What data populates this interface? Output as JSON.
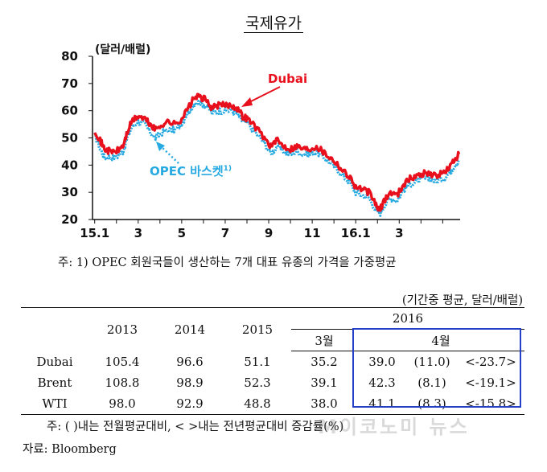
{
  "title": "국제유가",
  "chart_data": {
    "type": "line",
    "ylabel": "(달러/배럴)",
    "ylim": [
      20,
      80
    ],
    "yticks": [
      20,
      30,
      40,
      50,
      60,
      70,
      80
    ],
    "xticks": [
      {
        "label": "15.1",
        "month": 0
      },
      {
        "label": "3",
        "month": 2
      },
      {
        "label": "5",
        "month": 4
      },
      {
        "label": "7",
        "month": 6
      },
      {
        "label": "9",
        "month": 8
      },
      {
        "label": "11",
        "month": 10
      },
      {
        "label": "16.1",
        "month": 12
      },
      {
        "label": "3",
        "month": 14
      }
    ],
    "x_start_month": -0.1,
    "x_end_month": 16.8,
    "grid": false,
    "series": [
      {
        "name": "Dubai",
        "color": "#e8101c",
        "points": [
          [
            0.0,
            53
          ],
          [
            0.25,
            49
          ],
          [
            0.45,
            46
          ],
          [
            0.7,
            45
          ],
          [
            1.0,
            45
          ],
          [
            1.3,
            47
          ],
          [
            1.5,
            52
          ],
          [
            1.7,
            56
          ],
          [
            2.0,
            58
          ],
          [
            2.3,
            57
          ],
          [
            2.55,
            55
          ],
          [
            2.8,
            53
          ],
          [
            3.1,
            55
          ],
          [
            3.4,
            56
          ],
          [
            3.7,
            55
          ],
          [
            4.0,
            57
          ],
          [
            4.3,
            61
          ],
          [
            4.6,
            65
          ],
          [
            4.85,
            65
          ],
          [
            5.1,
            64
          ],
          [
            5.4,
            61
          ],
          [
            5.7,
            62
          ],
          [
            6.0,
            62
          ],
          [
            6.3,
            62
          ],
          [
            6.55,
            61
          ],
          [
            6.8,
            58
          ],
          [
            7.05,
            57
          ],
          [
            7.4,
            54
          ],
          [
            7.8,
            50
          ],
          [
            8.1,
            47
          ],
          [
            8.4,
            49
          ],
          [
            8.7,
            47
          ],
          [
            9.0,
            46
          ],
          [
            9.3,
            47
          ],
          [
            9.6,
            46
          ],
          [
            9.9,
            46
          ],
          [
            10.2,
            47
          ],
          [
            10.5,
            45
          ],
          [
            10.8,
            43
          ],
          [
            11.1,
            41
          ],
          [
            11.4,
            38
          ],
          [
            11.7,
            36
          ],
          [
            12.0,
            32
          ],
          [
            12.3,
            31
          ],
          [
            12.6,
            30
          ],
          [
            12.9,
            26
          ],
          [
            13.1,
            23
          ],
          [
            13.3,
            27
          ],
          [
            13.6,
            30
          ],
          [
            13.9,
            29
          ],
          [
            14.2,
            33
          ],
          [
            14.5,
            35
          ],
          [
            14.8,
            36
          ],
          [
            15.1,
            37
          ],
          [
            15.4,
            37
          ],
          [
            15.7,
            36
          ],
          [
            16.0,
            37
          ],
          [
            16.3,
            39
          ],
          [
            16.55,
            42
          ],
          [
            16.75,
            44
          ]
        ]
      },
      {
        "name": "OPEC 바스켓",
        "color": "#27a9e1",
        "points": [
          [
            0.0,
            51
          ],
          [
            0.25,
            46
          ],
          [
            0.45,
            43
          ],
          [
            0.7,
            43
          ],
          [
            1.0,
            43
          ],
          [
            1.3,
            45
          ],
          [
            1.5,
            50
          ],
          [
            1.7,
            54
          ],
          [
            2.0,
            56
          ],
          [
            2.3,
            55
          ],
          [
            2.55,
            52
          ],
          [
            2.8,
            50
          ],
          [
            3.1,
            52
          ],
          [
            3.4,
            53
          ],
          [
            3.7,
            53
          ],
          [
            4.0,
            55
          ],
          [
            4.3,
            59
          ],
          [
            4.6,
            63
          ],
          [
            4.85,
            63
          ],
          [
            5.1,
            62
          ],
          [
            5.4,
            59
          ],
          [
            5.7,
            60
          ],
          [
            6.0,
            60
          ],
          [
            6.3,
            60
          ],
          [
            6.55,
            59
          ],
          [
            6.8,
            56
          ],
          [
            7.05,
            55
          ],
          [
            7.4,
            52
          ],
          [
            7.8,
            48
          ],
          [
            8.1,
            44
          ],
          [
            8.4,
            47
          ],
          [
            8.7,
            45
          ],
          [
            9.0,
            44
          ],
          [
            9.3,
            45
          ],
          [
            9.6,
            44
          ],
          [
            9.9,
            44
          ],
          [
            10.2,
            45
          ],
          [
            10.5,
            43
          ],
          [
            10.8,
            41
          ],
          [
            11.1,
            39
          ],
          [
            11.4,
            36
          ],
          [
            11.7,
            34
          ],
          [
            12.0,
            30
          ],
          [
            12.3,
            29
          ],
          [
            12.6,
            28
          ],
          [
            12.9,
            24
          ],
          [
            13.1,
            22
          ],
          [
            13.3,
            25
          ],
          [
            13.6,
            28
          ],
          [
            13.9,
            27
          ],
          [
            14.2,
            31
          ],
          [
            14.5,
            33
          ],
          [
            14.8,
            34
          ],
          [
            15.1,
            35
          ],
          [
            15.4,
            35
          ],
          [
            15.7,
            34
          ],
          [
            16.0,
            35
          ],
          [
            16.3,
            37
          ],
          [
            16.55,
            40
          ],
          [
            16.75,
            42
          ]
        ]
      }
    ],
    "annotations": {
      "dubai_label": "Dubai",
      "opec_label": "OPEC 바스켓",
      "opec_superscript": "1)"
    }
  },
  "footnote": "주: 1) OPEC 회원국들이 생산하는 7개 대표 유종의 가격을 가중평균",
  "table": {
    "unit_note": "(기간중 평균, 달러/배럴)",
    "year_headers": [
      "2013",
      "2014",
      "2015"
    ],
    "group_header": "2016",
    "sub_headers": [
      "3월",
      "4월"
    ],
    "rows": [
      {
        "name": "Dubai",
        "values": [
          "105.4",
          "96.6",
          "51.1",
          "35.2",
          "39.0",
          "(11.0)",
          "<-23.7>"
        ]
      },
      {
        "name": "Brent",
        "values": [
          "108.8",
          "98.9",
          "52.3",
          "39.1",
          "42.3",
          "(8.1)",
          "<-19.1>"
        ]
      },
      {
        "name": "WTI",
        "values": [
          "98.0",
          "92.9",
          "48.8",
          "38.0",
          "41.1",
          "(8.3)",
          "<-15.8>"
        ]
      }
    ],
    "note": "주: (   )내는 전월평균대비, <   >내는 전년평균대비 증감률(%)",
    "source": "자료: Bloomberg"
  },
  "watermark": "M이코노미 뉴스",
  "colors": {
    "highlight_box": "#2340c6"
  }
}
